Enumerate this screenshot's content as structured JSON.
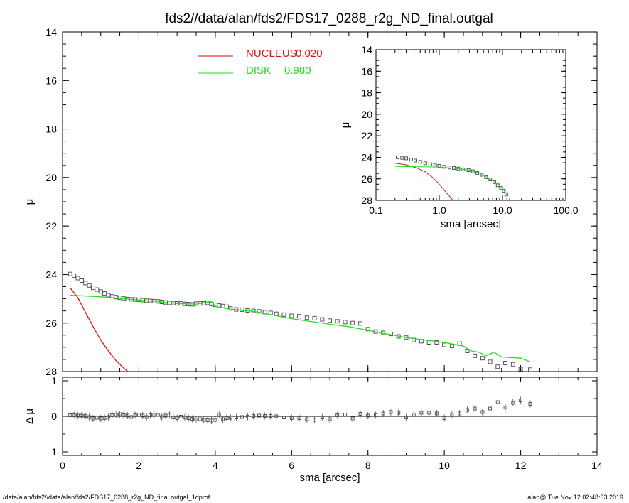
{
  "title": "fds2//data/alan/fds2/FDS17_0288_r2g_ND_final.outgal",
  "footer_left": "/data/alan/fds2//data/alan/fds2/FDS17_0288_r2g_ND_final.outgal_1dprof",
  "footer_right": "alan@  Tue Nov 12 02:48:33 2019",
  "colors": {
    "nucleus": "#dd1111",
    "disk": "#22dd22",
    "data": "#555555",
    "axes": "#000000"
  },
  "legend": [
    {
      "label": "NUCLEUS",
      "value": "0.020",
      "color": "#dd1111"
    },
    {
      "label": "DISK",
      "value": "0.980",
      "color": "#22dd22"
    }
  ],
  "chart_data": [
    {
      "type": "scatter",
      "panel": "main",
      "xlabel": "sma [arcsec]",
      "ylabel": "μ",
      "xlim": [
        0,
        14
      ],
      "ylim": [
        28,
        14
      ],
      "y_inverted": true,
      "x_ticks": [
        "0",
        "2",
        "4",
        "6",
        "8",
        "10",
        "12",
        "14"
      ],
      "y_ticks": [
        "14",
        "16",
        "18",
        "20",
        "22",
        "24",
        "26",
        "28"
      ],
      "series": [
        {
          "name": "data",
          "style": "squares",
          "x": [
            0.2,
            0.3,
            0.4,
            0.5,
            0.6,
            0.7,
            0.8,
            0.9,
            1.0,
            1.1,
            1.2,
            1.3,
            1.4,
            1.5,
            1.6,
            1.7,
            1.8,
            1.9,
            2.0,
            2.1,
            2.2,
            2.3,
            2.4,
            2.5,
            2.6,
            2.7,
            2.8,
            2.9,
            3.0,
            3.1,
            3.2,
            3.3,
            3.4,
            3.5,
            3.6,
            3.7,
            3.8,
            3.9,
            4.0,
            4.1,
            4.2,
            4.3,
            4.4,
            4.55,
            4.7,
            4.85,
            5.0,
            5.15,
            5.3,
            5.45,
            5.6,
            5.8,
            6.0,
            6.2,
            6.4,
            6.6,
            6.8,
            7.0,
            7.2,
            7.4,
            7.6,
            7.8,
            8.0,
            8.2,
            8.4,
            8.6,
            8.8,
            9.0,
            9.2,
            9.4,
            9.6,
            9.8,
            10.0,
            10.2,
            10.4,
            10.6,
            10.8,
            11.0,
            11.2,
            11.4,
            11.6,
            11.8,
            12.0,
            12.25
          ],
          "y": [
            23.98,
            24.05,
            24.15,
            24.25,
            24.35,
            24.45,
            24.55,
            24.62,
            24.7,
            24.78,
            24.85,
            24.9,
            24.93,
            24.96,
            24.99,
            25.01,
            25.02,
            25.03,
            25.04,
            25.06,
            25.08,
            25.09,
            25.1,
            25.11,
            25.13,
            25.15,
            25.17,
            25.18,
            25.19,
            25.19,
            25.21,
            25.22,
            25.23,
            25.2,
            25.19,
            25.19,
            25.17,
            25.22,
            25.25,
            25.28,
            25.3,
            25.33,
            25.4,
            25.44,
            25.45,
            25.48,
            25.5,
            25.52,
            25.55,
            25.58,
            25.62,
            25.65,
            25.7,
            25.72,
            25.78,
            25.8,
            25.85,
            25.9,
            25.93,
            25.96,
            26.0,
            26.02,
            26.25,
            26.35,
            26.4,
            26.45,
            26.55,
            26.6,
            26.7,
            26.75,
            26.8,
            26.8,
            26.9,
            26.95,
            26.85,
            27.15,
            27.35,
            27.45,
            27.6,
            27.8,
            27.65,
            27.7,
            27.9,
            27.92
          ]
        },
        {
          "name": "NUCLEUS",
          "style": "line",
          "x": [
            0.2,
            0.4,
            0.6,
            0.8,
            1.0,
            1.2,
            1.4,
            1.6,
            1.75
          ],
          "y": [
            24.55,
            24.95,
            25.55,
            26.15,
            26.7,
            27.15,
            27.55,
            27.85,
            28.05
          ]
        },
        {
          "name": "DISK",
          "style": "line",
          "x": [
            0.2,
            1.0,
            2.0,
            3.0,
            3.5,
            3.9,
            4.0,
            4.1,
            4.5,
            5.0,
            6.0,
            7.0,
            7.5,
            8.0,
            8.5,
            9.0,
            9.5,
            10.0,
            10.5,
            10.7,
            10.9,
            11.1,
            11.3,
            11.5,
            12.0,
            12.25
          ],
          "y": [
            24.85,
            24.92,
            25.05,
            25.2,
            25.22,
            25.12,
            25.3,
            25.35,
            25.45,
            25.52,
            25.82,
            26.05,
            26.15,
            26.3,
            26.45,
            26.6,
            26.7,
            26.8,
            26.95,
            27.15,
            27.2,
            27.35,
            27.2,
            27.4,
            27.45,
            27.6
          ]
        }
      ]
    },
    {
      "type": "scatter",
      "panel": "inset",
      "xlabel": "sma [arcsec]",
      "ylabel": "μ",
      "x_scale": "log",
      "xlim": [
        0.1,
        100.0
      ],
      "ylim": [
        28,
        14
      ],
      "y_inverted": true,
      "x_ticks": [
        "0.1",
        "1.0",
        "10.0",
        "100.0"
      ],
      "y_ticks": [
        "14",
        "16",
        "18",
        "20",
        "22",
        "24",
        "26",
        "28"
      ],
      "series": [
        {
          "name": "data",
          "style": "squares",
          "x": [
            0.22,
            0.26,
            0.3,
            0.36,
            0.42,
            0.5,
            0.6,
            0.72,
            0.86,
            1.0,
            1.2,
            1.45,
            1.7,
            2.0,
            2.4,
            2.9,
            3.4,
            4.0,
            4.7,
            5.5,
            6.4,
            7.4,
            8.4,
            9.5,
            10.5,
            11.5,
            12.3
          ],
          "y": [
            24.0,
            24.05,
            24.1,
            24.2,
            24.3,
            24.42,
            24.55,
            24.65,
            24.75,
            24.8,
            24.88,
            24.95,
            25.0,
            25.05,
            25.12,
            25.2,
            25.3,
            25.45,
            25.62,
            25.85,
            26.05,
            26.3,
            26.6,
            26.85,
            27.1,
            27.45,
            27.9
          ]
        },
        {
          "name": "NUCLEUS",
          "style": "line",
          "x": [
            0.2,
            0.3,
            0.45,
            0.6,
            0.8,
            1.0,
            1.2,
            1.45,
            1.7
          ],
          "y": [
            24.55,
            24.7,
            25.0,
            25.35,
            25.9,
            26.5,
            27.05,
            27.6,
            28.1
          ]
        },
        {
          "name": "DISK",
          "style": "line",
          "x": [
            0.2,
            0.5,
            1.0,
            2.0,
            3.0,
            4.0,
            6.0,
            8.0,
            10.0,
            12.3
          ],
          "y": [
            24.85,
            24.88,
            24.9,
            25.05,
            25.2,
            25.4,
            25.9,
            26.4,
            26.9,
            27.6
          ]
        }
      ]
    },
    {
      "type": "scatter",
      "panel": "residual",
      "xlabel": "sma [arcsec]",
      "ylabel": "Δ μ",
      "xlim": [
        0,
        14
      ],
      "ylim": [
        -1.1,
        1.1
      ],
      "x_ticks": [
        "0",
        "2",
        "4",
        "6",
        "8",
        "10",
        "12",
        "14"
      ],
      "y_ticks": [
        "1",
        "0",
        "-1"
      ],
      "series": [
        {
          "name": "residuals",
          "style": "squares",
          "x": [
            0.2,
            0.3,
            0.4,
            0.5,
            0.6,
            0.7,
            0.8,
            0.9,
            1.0,
            1.1,
            1.2,
            1.3,
            1.4,
            1.5,
            1.6,
            1.7,
            1.8,
            1.9,
            2.0,
            2.1,
            2.2,
            2.3,
            2.4,
            2.5,
            2.6,
            2.7,
            2.8,
            2.9,
            3.0,
            3.1,
            3.2,
            3.3,
            3.4,
            3.5,
            3.6,
            3.7,
            3.8,
            3.9,
            4.0,
            4.1,
            4.2,
            4.3,
            4.4,
            4.55,
            4.7,
            4.85,
            5.0,
            5.15,
            5.3,
            5.45,
            5.6,
            5.8,
            6.0,
            6.2,
            6.4,
            6.6,
            6.8,
            7.0,
            7.2,
            7.4,
            7.6,
            7.8,
            8.0,
            8.2,
            8.4,
            8.6,
            8.8,
            9.0,
            9.2,
            9.4,
            9.6,
            9.8,
            10.0,
            10.2,
            10.4,
            10.6,
            10.8,
            11.0,
            11.2,
            11.4,
            11.6,
            11.8,
            12.0,
            12.25
          ],
          "y": [
            0.03,
            0.03,
            0.02,
            0.02,
            0.01,
            -0.02,
            -0.06,
            -0.04,
            -0.06,
            -0.05,
            -0.02,
            0.03,
            0.05,
            0.06,
            0.03,
            0.02,
            -0.02,
            0.03,
            0.05,
            0.02,
            -0.02,
            0.03,
            0.05,
            0.04,
            -0.02,
            0.02,
            0.04,
            -0.03,
            -0.05,
            -0.01,
            -0.03,
            -0.05,
            -0.07,
            -0.09,
            -0.08,
            -0.1,
            -0.11,
            -0.12,
            -0.1,
            0.05,
            -0.08,
            -0.05,
            -0.04,
            -0.03,
            -0.02,
            -0.01,
            0.01,
            0.02,
            0.01,
            0.01,
            0.0,
            -0.03,
            -0.05,
            -0.05,
            -0.08,
            -0.1,
            -0.03,
            -0.08,
            0.03,
            0.05,
            -0.06,
            0.07,
            0.02,
            0.03,
            0.08,
            0.12,
            0.1,
            -0.03,
            0.05,
            0.1,
            0.1,
            0.08,
            -0.05,
            0.05,
            0.08,
            0.18,
            0.22,
            0.12,
            0.22,
            0.4,
            0.25,
            0.38,
            0.45,
            0.35
          ]
        }
      ]
    }
  ]
}
